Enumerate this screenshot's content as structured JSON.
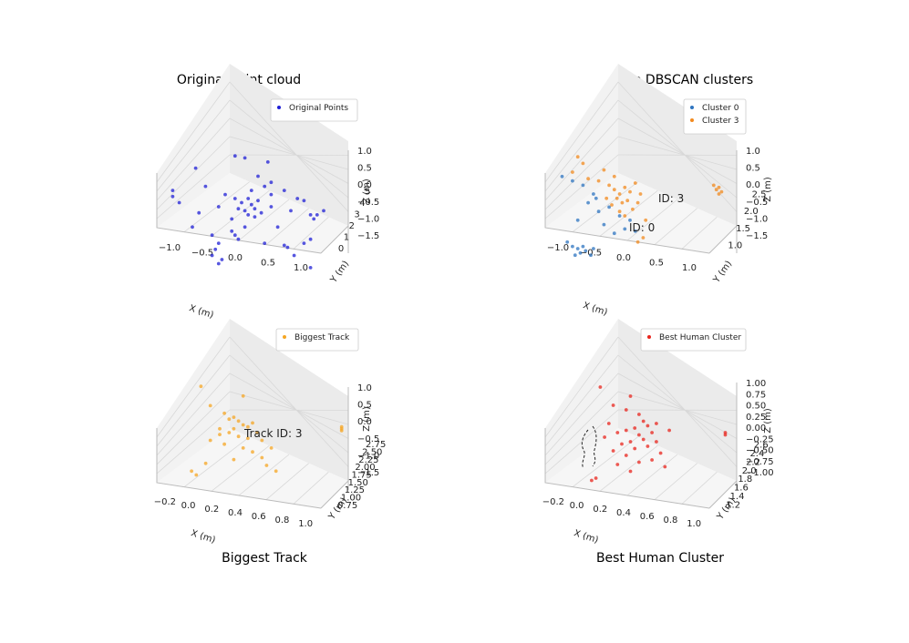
{
  "figure": {
    "titles": [
      "Original Point cloud",
      "Top DBSCAN clusters",
      "Biggest Track",
      "Best Human Cluster"
    ]
  },
  "chart_data": [
    {
      "type": "scatter",
      "title": "Original Point cloud",
      "xlabel": "X (m)",
      "ylabel": "Y (m)",
      "zlabel": "Z (m)",
      "x_ticks": [
        "−1.0",
        "−0.5",
        "0.0",
        "0.5",
        "1.0"
      ],
      "y_ticks": [
        "0",
        "1",
        "2",
        "3",
        "4",
        "5"
      ],
      "z_ticks": [
        "1.0",
        "0.5",
        "0.0",
        "−0.5",
        "−1.0",
        "−1.5"
      ],
      "legend": [
        "Original Points"
      ],
      "legend_position": "top-right",
      "grid": true,
      "series": [
        {
          "name": "Original Points",
          "color": "#1f1fd6",
          "points": [
            [
              0.05,
              2.6,
              0.85
            ],
            [
              0.2,
              2.6,
              0.8
            ],
            [
              0.55,
              2.6,
              0.7
            ],
            [
              -0.55,
              2.6,
              0.55
            ],
            [
              0.4,
              2.6,
              0.35
            ],
            [
              0.6,
              2.6,
              0.2
            ],
            [
              0.3,
              2.6,
              0.0
            ],
            [
              -0.4,
              2.6,
              0.1
            ],
            [
              0.8,
              2.6,
              0.0
            ],
            [
              -0.9,
              2.6,
              0.0
            ],
            [
              -0.9,
              2.6,
              -0.15
            ],
            [
              -0.8,
              2.6,
              -0.3
            ],
            [
              -0.1,
              2.6,
              -0.1
            ],
            [
              0.05,
              2.6,
              -0.2
            ],
            [
              0.15,
              2.6,
              -0.3
            ],
            [
              0.25,
              2.6,
              -0.2
            ],
            [
              0.3,
              2.6,
              -0.35
            ],
            [
              0.35,
              2.6,
              -0.45
            ],
            [
              0.4,
              2.6,
              -0.25
            ],
            [
              0.2,
              2.6,
              -0.5
            ],
            [
              0.1,
              2.6,
              -0.45
            ],
            [
              0.25,
              2.6,
              -0.6
            ],
            [
              0.35,
              2.6,
              -0.65
            ],
            [
              0.45,
              2.6,
              -0.55
            ],
            [
              0.0,
              2.6,
              -0.7
            ],
            [
              -0.2,
              2.6,
              -0.4
            ],
            [
              -0.5,
              2.6,
              -0.55
            ],
            [
              -0.6,
              2.6,
              -0.9
            ],
            [
              0.6,
              2.6,
              -0.1
            ],
            [
              0.9,
              2.6,
              -0.5
            ],
            [
              1.2,
              2.6,
              -0.6
            ],
            [
              1.25,
              2.6,
              -0.7
            ],
            [
              1.3,
              2.6,
              -0.6
            ],
            [
              1.4,
              2.6,
              -0.5
            ],
            [
              0.7,
              2.6,
              -0.9
            ],
            [
              0.2,
              2.6,
              -0.9
            ],
            [
              0.1,
              2.6,
              -1.2
            ],
            [
              -0.2,
              2.6,
              -1.3
            ],
            [
              -0.25,
              2.6,
              -1.45
            ],
            [
              -0.3,
              2.6,
              -1.6
            ],
            [
              -0.15,
              2.6,
              -1.7
            ],
            [
              -0.2,
              2.6,
              -1.8
            ],
            [
              0.5,
              2.6,
              -1.3
            ],
            [
              0.8,
              2.6,
              -1.35
            ],
            [
              0.85,
              2.6,
              -1.4
            ],
            [
              1.1,
              2.6,
              -1.3
            ],
            [
              1.2,
              2.6,
              -1.2
            ],
            [
              1.2,
              2.6,
              -1.9
            ],
            [
              0.95,
              2.6,
              -1.6
            ],
            [
              0.0,
              2.6,
              -1.0
            ],
            [
              0.05,
              2.6,
              -1.1
            ],
            [
              -0.3,
              2.6,
              -1.1
            ],
            [
              0.6,
              2.6,
              -0.4
            ],
            [
              1.0,
              2.6,
              -0.2
            ],
            [
              1.1,
              2.6,
              -0.25
            ],
            [
              0.5,
              2.6,
              0.1
            ]
          ]
        }
      ]
    },
    {
      "type": "scatter",
      "title": "Top DBSCAN clusters",
      "xlabel": "X (m)",
      "ylabel": "Y (m)",
      "zlabel": "Z (m)",
      "x_ticks": [
        "−1.0",
        "−0.5",
        "0.0",
        "0.5",
        "1.0"
      ],
      "y_ticks": [
        "1.0",
        "1.5",
        "2.0",
        "2.5"
      ],
      "z_ticks": [
        "1.0",
        "0.5",
        "0.0",
        "−0.5",
        "−1.0",
        "−1.5"
      ],
      "legend": [
        "Cluster 0",
        "Cluster 3"
      ],
      "legend_position": "top-right",
      "grid": true,
      "annotations": [
        "ID: 3",
        "ID: 0"
      ],
      "series": [
        {
          "name": "Cluster 0",
          "color": "#2e74c0",
          "points": [
            [
              -0.9,
              1.8,
              0.3
            ],
            [
              -0.7,
              1.8,
              0.2
            ],
            [
              -0.5,
              1.8,
              0.1
            ],
            [
              -0.3,
              1.8,
              -0.1
            ],
            [
              -0.4,
              1.8,
              -0.3
            ],
            [
              -0.2,
              1.8,
              -0.5
            ],
            [
              0.0,
              1.8,
              -0.4
            ],
            [
              0.2,
              1.8,
              -0.6
            ],
            [
              -0.1,
              1.8,
              -0.8
            ],
            [
              0.3,
              1.8,
              -0.9
            ],
            [
              0.1,
              1.8,
              -1.0
            ],
            [
              -0.6,
              1.8,
              -0.7
            ],
            [
              -0.8,
              1.8,
              -1.2
            ],
            [
              -0.7,
              1.8,
              -1.3
            ],
            [
              -0.6,
              1.8,
              -1.35
            ],
            [
              -0.5,
              1.8,
              -1.3
            ],
            [
              -0.55,
              1.8,
              -1.45
            ],
            [
              -0.45,
              1.8,
              -1.4
            ],
            [
              -0.35,
              1.8,
              -1.5
            ],
            [
              -0.65,
              1.8,
              -1.5
            ],
            [
              -0.3,
              1.8,
              -1.35
            ],
            [
              0.4,
              1.8,
              -0.7
            ],
            [
              0.5,
              1.8,
              -0.95
            ],
            [
              -0.25,
              1.8,
              -0.2
            ]
          ]
        },
        {
          "name": "Cluster 3",
          "color": "#f28a1e",
          "points": [
            [
              -0.6,
              1.8,
              0.75
            ],
            [
              -0.5,
              1.8,
              0.6
            ],
            [
              -0.7,
              1.8,
              0.4
            ],
            [
              -0.4,
              1.8,
              0.25
            ],
            [
              -0.2,
              1.8,
              0.2
            ],
            [
              0.0,
              1.8,
              0.1
            ],
            [
              0.1,
              1.8,
              0.0
            ],
            [
              0.2,
              1.8,
              -0.1
            ],
            [
              0.3,
              1.8,
              0.05
            ],
            [
              0.15,
              1.8,
              -0.2
            ],
            [
              0.25,
              1.8,
              -0.3
            ],
            [
              0.35,
              1.8,
              -0.25
            ],
            [
              0.05,
              1.8,
              -0.35
            ],
            [
              -0.05,
              1.8,
              -0.2
            ],
            [
              0.4,
              1.8,
              -0.05
            ],
            [
              0.5,
              1.8,
              0.15
            ],
            [
              0.45,
              1.8,
              -0.45
            ],
            [
              0.3,
              1.8,
              -0.6
            ],
            [
              0.2,
              1.8,
              -0.5
            ],
            [
              0.55,
              1.8,
              -0.3
            ],
            [
              0.6,
              1.8,
              -0.1
            ],
            [
              0.1,
              1.8,
              0.3
            ],
            [
              -0.1,
              1.8,
              0.45
            ],
            [
              0.7,
              1.8,
              -0.7
            ],
            [
              0.65,
              1.8,
              -1.1
            ],
            [
              0.55,
              1.8,
              -1.2
            ],
            [
              2.0,
              1.8,
              0.1
            ],
            [
              2.05,
              1.8,
              0.0
            ],
            [
              2.1,
              1.8,
              0.05
            ],
            [
              2.15,
              1.8,
              -0.05
            ],
            [
              2.1,
              1.8,
              -0.1
            ]
          ]
        }
      ]
    },
    {
      "type": "scatter",
      "title": "Biggest Track",
      "xlabel": "X (m)",
      "ylabel": "Y (m)",
      "zlabel": "Z (m)",
      "x_ticks": [
        "−0.2",
        "0.0",
        "0.2",
        "0.4",
        "0.6",
        "0.8",
        "1.0"
      ],
      "y_ticks": [
        "0.75",
        "1.00",
        "1.25",
        "1.50",
        "1.75",
        "2.00",
        "2.25",
        "2.50",
        "2.75"
      ],
      "z_ticks": [
        "1.0",
        "0.5",
        "0.0",
        "−0.5",
        "−1.0",
        "−1.5"
      ],
      "legend": [
        "Biggest Track"
      ],
      "legend_position": "top-right",
      "grid": true,
      "annotations": [
        "Track ID: 3"
      ],
      "series": [
        {
          "name": "Biggest Track",
          "color": "#f5a623",
          "points": [
            [
              -0.15,
              1.8,
              1.0
            ],
            [
              0.3,
              1.8,
              0.75
            ],
            [
              -0.05,
              1.8,
              0.5
            ],
            [
              0.1,
              1.8,
              0.3
            ],
            [
              0.2,
              1.8,
              0.2
            ],
            [
              0.25,
              1.8,
              0.1
            ],
            [
              0.3,
              1.8,
              0.0
            ],
            [
              0.35,
              1.8,
              -0.05
            ],
            [
              0.4,
              1.8,
              0.05
            ],
            [
              0.2,
              1.8,
              -0.1
            ],
            [
              0.15,
              1.8,
              -0.2
            ],
            [
              0.05,
              1.8,
              -0.25
            ],
            [
              0.25,
              1.8,
              -0.3
            ],
            [
              0.35,
              1.8,
              -0.35
            ],
            [
              0.45,
              1.8,
              -0.2
            ],
            [
              0.5,
              1.8,
              -0.4
            ],
            [
              0.1,
              1.8,
              -0.5
            ],
            [
              -0.05,
              1.8,
              -0.4
            ],
            [
              0.3,
              1.8,
              -0.6
            ],
            [
              0.4,
              1.8,
              -0.7
            ],
            [
              0.5,
              1.8,
              -0.85
            ],
            [
              0.6,
              1.8,
              -0.6
            ],
            [
              0.2,
              1.8,
              -0.9
            ],
            [
              -0.1,
              1.8,
              -1.0
            ],
            [
              -0.25,
              1.8,
              -1.2
            ],
            [
              -0.2,
              1.8,
              -1.3
            ],
            [
              0.55,
              1.8,
              -1.05
            ],
            [
              0.65,
              1.8,
              -1.2
            ],
            [
              0.15,
              1.8,
              0.15
            ],
            [
              0.05,
              1.8,
              -0.1
            ],
            [
              1.35,
              1.8,
              -0.05
            ],
            [
              1.35,
              1.8,
              -0.1
            ],
            [
              1.35,
              1.8,
              -0.15
            ]
          ]
        }
      ]
    },
    {
      "type": "scatter",
      "title": "Best Human Cluster",
      "xlabel": "X (m)",
      "ylabel": "Y (m)",
      "zlabel": "Z (m)",
      "x_ticks": [
        "−0.2",
        "0.0",
        "0.2",
        "0.4",
        "0.6",
        "0.8",
        "1.0"
      ],
      "y_ticks": [
        "1.2",
        "1.4",
        "1.6",
        "1.8",
        "2.0",
        "2.2",
        "2.4",
        "2.6"
      ],
      "z_ticks": [
        "1.00",
        "0.75",
        "0.50",
        "0.25",
        "0.00",
        "−0.25",
        "−0.50",
        "−0.75",
        "−1.00"
      ],
      "legend": [
        "Best Human Cluster"
      ],
      "legend_position": "top-right",
      "grid": true,
      "series": [
        {
          "name": "Best Human Cluster",
          "color": "#e8241c",
          "points": [
            [
              0.0,
              1.8,
              0.95
            ],
            [
              0.35,
              1.8,
              0.75
            ],
            [
              0.15,
              1.8,
              0.55
            ],
            [
              0.3,
              1.8,
              0.45
            ],
            [
              0.45,
              1.8,
              0.35
            ],
            [
              0.5,
              1.8,
              0.2
            ],
            [
              0.55,
              1.8,
              0.1
            ],
            [
              0.4,
              1.8,
              0.05
            ],
            [
              0.3,
              1.8,
              0.0
            ],
            [
              0.2,
              1.8,
              -0.05
            ],
            [
              0.45,
              1.8,
              -0.1
            ],
            [
              0.6,
              1.8,
              -0.05
            ],
            [
              0.5,
              1.8,
              -0.2
            ],
            [
              0.35,
              1.8,
              -0.25
            ],
            [
              0.25,
              1.8,
              -0.3
            ],
            [
              0.4,
              1.8,
              -0.4
            ],
            [
              0.55,
              1.8,
              -0.35
            ],
            [
              0.65,
              1.8,
              -0.25
            ],
            [
              0.7,
              1.8,
              -0.5
            ],
            [
              0.3,
              1.8,
              -0.55
            ],
            [
              0.15,
              1.8,
              -0.45
            ],
            [
              0.6,
              1.8,
              -0.65
            ],
            [
              0.45,
              1.8,
              -0.7
            ],
            [
              0.2,
              1.8,
              -0.75
            ],
            [
              0.75,
              1.8,
              -0.8
            ],
            [
              0.35,
              1.8,
              -0.9
            ],
            [
              -0.05,
              1.8,
              -1.05
            ],
            [
              -0.1,
              1.8,
              -1.1
            ],
            [
              0.65,
              1.8,
              0.15
            ],
            [
              0.8,
              1.8,
              0.0
            ],
            [
              0.1,
              1.8,
              0.15
            ],
            [
              0.05,
              1.8,
              -0.15
            ],
            [
              1.45,
              1.8,
              -0.05
            ],
            [
              1.45,
              1.8,
              -0.1
            ]
          ]
        }
      ]
    }
  ]
}
